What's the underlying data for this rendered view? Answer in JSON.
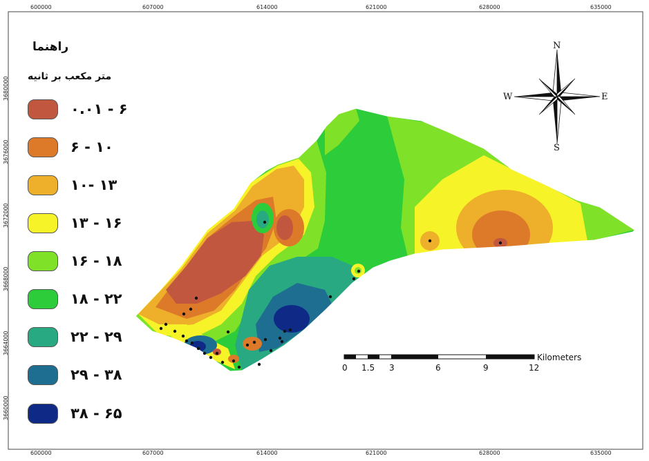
{
  "legend": {
    "title": "راهنما",
    "unit": "متر مکعب بر ثانیه",
    "items": [
      {
        "label": "۰.۰۱ - ۶",
        "color": "#c2573f"
      },
      {
        "label": "۶ - ۱۰",
        "color": "#dd7a2a"
      },
      {
        "label": "۱۰- ۱۳",
        "color": "#eeb02a"
      },
      {
        "label": "۱۳ - ۱۶",
        "color": "#f7f329"
      },
      {
        "label": "۱۶ - ۱۸",
        "color": "#7fe128"
      },
      {
        "label": "۱۸ - ۲۲",
        "color": "#2dcc3a"
      },
      {
        "label": "۲۲ - ۲۹",
        "color": "#28a981"
      },
      {
        "label": "۲۹ - ۳۸",
        "color": "#1e6e92"
      },
      {
        "label": "۳۸ - ۶۵",
        "color": "#0e2a86"
      }
    ]
  },
  "axes": {
    "top_ticks": [
      "600000",
      "607000",
      "614000",
      "621000",
      "628000",
      "635000"
    ],
    "bottom_ticks": [
      "600000",
      "607000",
      "614000",
      "621000",
      "628000",
      "635000"
    ],
    "left_ticks": [
      "3680000",
      "3676000",
      "3672000",
      "3668000",
      "3664000",
      "3660000"
    ]
  },
  "north_arrow": {
    "n": "N",
    "s": "S",
    "e": "E",
    "w": "W"
  },
  "scale_bar": {
    "unit": "Kilometers",
    "labels": [
      "0",
      "1.5",
      "3",
      "6",
      "9",
      "12"
    ]
  }
}
